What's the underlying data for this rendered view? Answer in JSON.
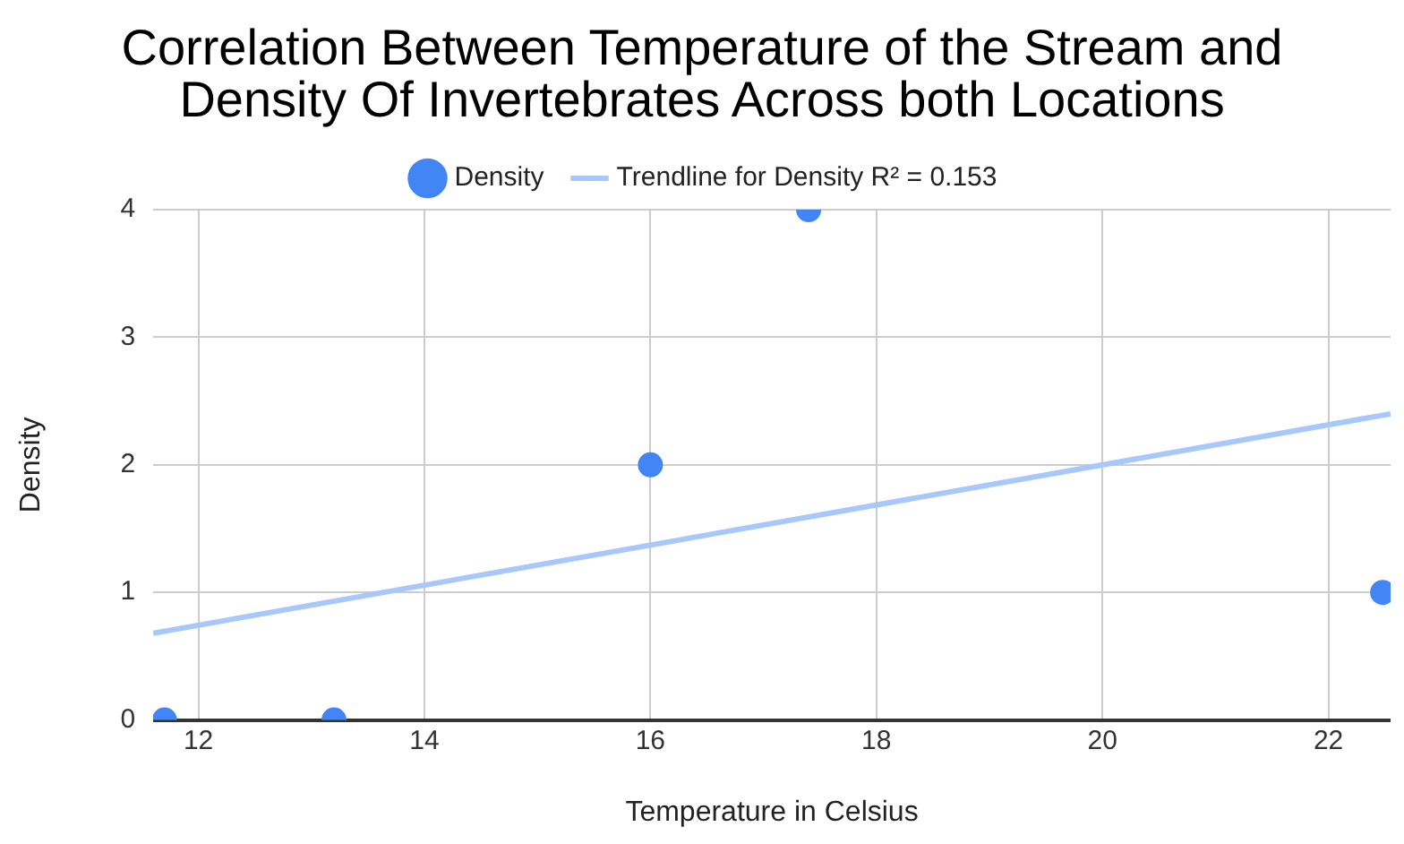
{
  "chart_data": {
    "type": "scatter",
    "title": "Correlation Between Temperature of the Stream and Density Of Invertebrates Across both Locations",
    "xlabel": "Temperature in Celsius",
    "ylabel": "Density",
    "series": [
      {
        "name": "Density",
        "type": "scatter",
        "marker": "circle",
        "color": "#4285f4",
        "x": [
          11.7,
          13.2,
          16,
          17.4,
          22.48
        ],
        "values": [
          0,
          0,
          2,
          4,
          1
        ]
      },
      {
        "name": "Trendline for Density R² = 0.153",
        "type": "line",
        "color": "#a8c7fa",
        "x": [
          11.6,
          22.55
        ],
        "values": [
          0.68,
          2.4
        ]
      }
    ],
    "xlim": [
      11.6,
      22.55
    ],
    "xticks": [
      12,
      14,
      16,
      18,
      20,
      22
    ],
    "ylim": [
      0,
      4
    ],
    "yticks": [
      0,
      1,
      2,
      3,
      4
    ],
    "grid": true,
    "legend": "top"
  }
}
